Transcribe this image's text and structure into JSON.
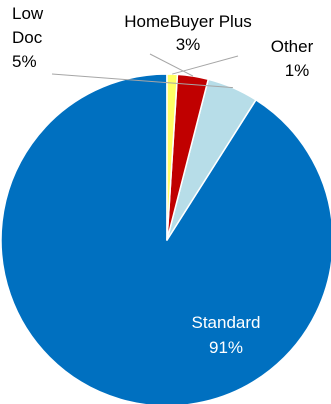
{
  "chart_data": {
    "type": "pie",
    "title": "",
    "slices": [
      {
        "name": "Standard",
        "value": 91,
        "value_label": "91%",
        "color": "#0070C0"
      },
      {
        "name": "Low Doc",
        "value": 5,
        "value_label": "5%",
        "color": "#B7DDE8"
      },
      {
        "name": "HomeBuyer Plus",
        "value": 3,
        "value_label": "3%",
        "color": "#C00000"
      },
      {
        "name": "Other",
        "value": 1,
        "value_label": "1%",
        "color": "#FFFF66"
      }
    ],
    "label_lines": [
      "Low",
      "Doc"
    ],
    "legend": "none",
    "start_angle": "12 o'clock",
    "direction": "counterclockwise"
  }
}
